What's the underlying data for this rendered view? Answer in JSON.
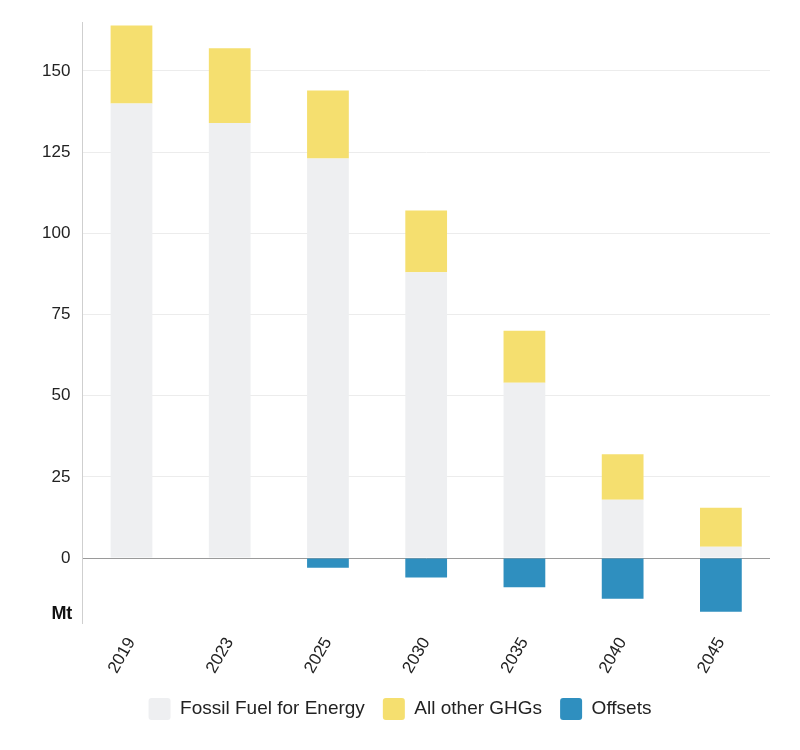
{
  "chart_data": {
    "type": "bar",
    "stacked": true,
    "ylabel": "Mt",
    "categories": [
      "2019",
      "2023",
      "2025",
      "2030",
      "2035",
      "2040",
      "2045"
    ],
    "series": [
      {
        "name": "Fossil Fuel for Energy",
        "color": "#eeeff1",
        "values": [
          140,
          134,
          123,
          88,
          54,
          18,
          3.5
        ]
      },
      {
        "name": "All other GHGs",
        "color": "#f5df6f",
        "values": [
          24,
          23,
          21,
          19,
          16,
          14,
          12
        ]
      },
      {
        "name": "Offsets",
        "color": "#2f8fbf",
        "values": [
          null,
          null,
          -3,
          -6,
          -9,
          -12.5,
          -16.5
        ]
      }
    ],
    "ylim": [
      -20,
      165
    ],
    "yticks": [
      0,
      25,
      50,
      75,
      100,
      125,
      150
    ],
    "grid": true,
    "legend": "bottom"
  }
}
